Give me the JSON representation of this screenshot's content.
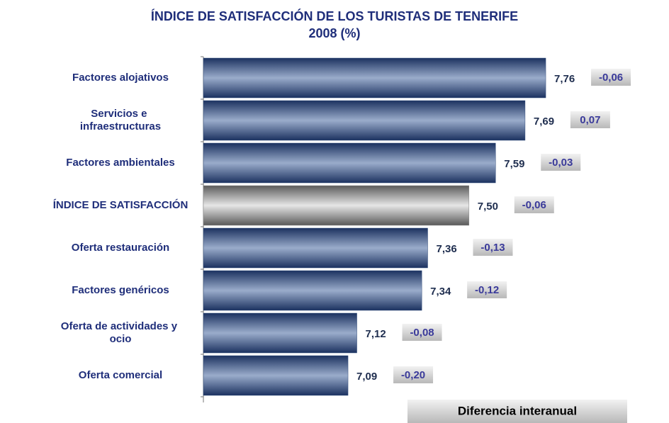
{
  "chart_data": {
    "type": "bar",
    "orientation": "horizontal",
    "title": "ÍNDICE DE SATISFACCIÓN DE LOS TURISTAS DE TENERIFE",
    "subtitle": "2008 (%)",
    "categories": [
      "Factores alojativos",
      "Servicios e infraestructuras",
      "Factores ambientales",
      "ÍNDICE DE SATISFACCIÓN",
      "Oferta restauración",
      "Factores genéricos",
      "Oferta de actividades y ocio",
      "Oferta comercial"
    ],
    "values": [
      7.76,
      7.69,
      7.59,
      7.5,
      7.36,
      7.34,
      7.12,
      7.09
    ],
    "value_labels": [
      "7,76",
      "7,69",
      "7,59",
      "7,50",
      "7,36",
      "7,34",
      "7,12",
      "7,09"
    ],
    "colors": [
      "#2e4a7a",
      "#2e4a7a",
      "#2e4a7a",
      "#8a8a8a",
      "#2e4a7a",
      "#2e4a7a",
      "#2e4a7a",
      "#2e4a7a"
    ],
    "differences": {
      "name": "Diferencia interanual",
      "values": [
        -0.06,
        0.07,
        -0.03,
        -0.06,
        -0.13,
        -0.12,
        -0.08,
        -0.2
      ],
      "value_labels": [
        "-0,06",
        "0,07",
        "-0,03",
        "-0,06",
        "-0,13",
        "-0,12",
        "-0,08",
        "-0,20"
      ]
    },
    "xlim": [
      6.6,
      8.0
    ]
  }
}
